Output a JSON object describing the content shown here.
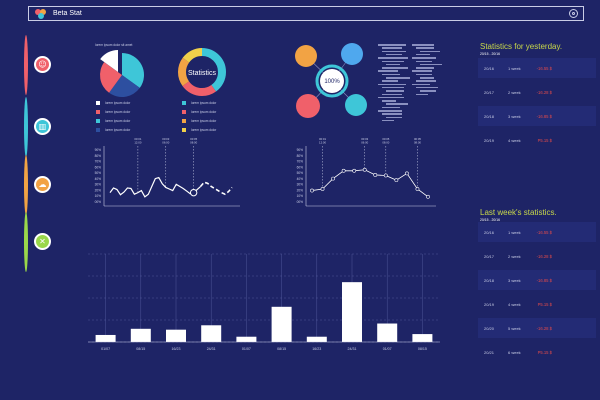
{
  "app": {
    "title": "Beta Stat",
    "logo_icon": "heart-logo-icon",
    "settings_icon": "gear-icon"
  },
  "colors": {
    "background": "#1e2466",
    "accent_red": "#f0606a",
    "accent_cyan": "#3ec6d8",
    "accent_orange": "#f2a344",
    "accent_yellow": "#f0d04a",
    "accent_green": "#9ad84a",
    "accent_blue": "#4fa8ee"
  },
  "nav": [
    {
      "name": "nav-item-1",
      "icon": "smiley-icon",
      "glyph": "☺",
      "color": "#f0606a"
    },
    {
      "name": "nav-item-2",
      "icon": "bar-chart-icon",
      "glyph": "▥",
      "color": "#3ec6d8"
    },
    {
      "name": "nav-item-3",
      "icon": "cloud-icon",
      "glyph": "☁",
      "color": "#f2a344"
    },
    {
      "name": "nav-item-4",
      "icon": "close-icon",
      "glyph": "✕",
      "color": "#9ad84a"
    }
  ],
  "pie": {
    "caption": "lorem ipsum dolor sit amet",
    "slices": [
      {
        "value": 35,
        "color": "#3ec6d8"
      },
      {
        "value": 25,
        "color": "#2d4fa0"
      },
      {
        "value": 25,
        "color": "#f0606a"
      },
      {
        "value": 15,
        "color": "#ffffff"
      }
    ],
    "legend": [
      {
        "color": "#ffffff",
        "text": "lorem ipsum dolor"
      },
      {
        "color": "#f0606a",
        "text": "lorem ipsum dolor"
      },
      {
        "color": "#3ec6d8",
        "text": "lorem ipsum dolor"
      },
      {
        "color": "#2d4fa0",
        "text": "lorem ipsum dolor"
      }
    ]
  },
  "donut": {
    "label": "Statistics",
    "slices": [
      {
        "value": 40,
        "color": "#3ec6d8"
      },
      {
        "value": 25,
        "color": "#f0606a"
      },
      {
        "value": 20,
        "color": "#f2a344"
      },
      {
        "value": 15,
        "color": "#f0d04a"
      }
    ],
    "legend": [
      {
        "color": "#3ec6d8",
        "text": "lorem ipsum dolor"
      },
      {
        "color": "#f0606a",
        "text": "lorem ipsum dolor"
      },
      {
        "color": "#f2a344",
        "text": "lorem ipsum dolor"
      },
      {
        "color": "#f0d04a",
        "text": "lorem ipsum dolor"
      }
    ]
  },
  "bubbles": {
    "center_label": "100%"
  },
  "line_chart_left": {
    "y_ticks": [
      "90%",
      "80%",
      "70%",
      "60%",
      "50%",
      "40%",
      "30%",
      "20%",
      "10%",
      "00%"
    ],
    "values": [
      18,
      27,
      24,
      14,
      19,
      27,
      26,
      15,
      18,
      22,
      10,
      15,
      30,
      45,
      47,
      35,
      28,
      25,
      22,
      34,
      30,
      26,
      21,
      16,
      18,
      24,
      30,
      38,
      36,
      30,
      26,
      22,
      18,
      15,
      20,
      28
    ],
    "markers": [
      {
        "i": 8,
        "label": "00:01\n12:00"
      },
      {
        "i": 16,
        "label": "00:03\n06:00"
      },
      {
        "i": 24,
        "label": "00:05\n08:00"
      }
    ]
  },
  "line_chart_right": {
    "y_ticks": [
      "90%",
      "80%",
      "70%",
      "60%",
      "50%",
      "40%",
      "30%",
      "20%",
      "10%",
      "00%"
    ],
    "values": [
      22,
      25,
      45,
      60,
      60,
      62,
      52,
      51,
      42,
      55,
      25,
      10
    ],
    "markers": [
      {
        "i": 1,
        "label": "00:01\n12:00"
      },
      {
        "i": 5,
        "label": "00:03\n06:00"
      },
      {
        "i": 7,
        "label": "00:05\n08:00"
      },
      {
        "i": 10,
        "label": "00:05\n08:00"
      }
    ]
  },
  "chart_data": {
    "type": "bar",
    "categories": [
      "01/07",
      "08/15",
      "16/23",
      "24/31",
      "01/07",
      "08/15",
      "16/23",
      "24/31",
      "01/07",
      "08/15"
    ],
    "values": [
      8,
      15,
      14,
      19,
      6,
      40,
      6,
      68,
      21,
      9
    ],
    "ylim": [
      0,
      100
    ]
  },
  "stats_yesterday": {
    "title": "Statistics for yesterday.",
    "subtitle": "20/15 - 20/16",
    "rows": [
      {
        "date": "20/16",
        "period": "1 week",
        "value": "-16.55 $"
      },
      {
        "date": "20/17",
        "period": "2 week",
        "value": "-16.28 $"
      },
      {
        "date": "20/18",
        "period": "3 week",
        "value": "-16.85 $"
      },
      {
        "date": "20/19",
        "period": "4 week",
        "value": "P5.15 $"
      }
    ]
  },
  "stats_lastweek": {
    "title": "Last week's statistics.",
    "subtitle": "20/15 - 20/16",
    "rows": [
      {
        "date": "20/16",
        "period": "1 week",
        "value": "-16.55 $"
      },
      {
        "date": "20/17",
        "period": "2 week",
        "value": "-16.28 $"
      },
      {
        "date": "20/18",
        "period": "3 week",
        "value": "-16.85 $"
      },
      {
        "date": "20/19",
        "period": "4 week",
        "value": "P5.15 $"
      },
      {
        "date": "20/20",
        "period": "5 week",
        "value": "-16.28 $"
      },
      {
        "date": "20/21",
        "period": "6 week",
        "value": "P5.15 $"
      }
    ]
  }
}
